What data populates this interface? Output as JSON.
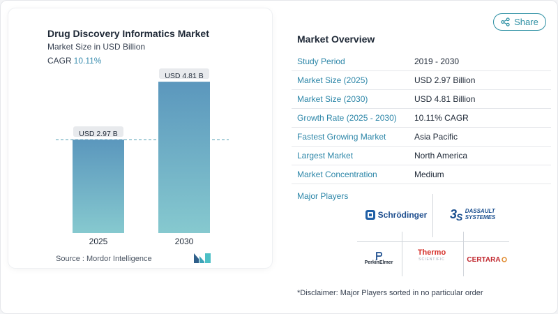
{
  "share": {
    "label": "Share",
    "icon": "share-icon"
  },
  "chart_data": {
    "type": "bar",
    "title": "Drug Discovery Informatics Market",
    "subtitle": "Market Size in USD Billion",
    "cagr_label": "CAGR",
    "cagr_value": "10.11%",
    "categories": [
      "2025",
      "2030"
    ],
    "values": [
      2.97,
      4.81
    ],
    "data_labels": [
      "USD 2.97 B",
      "USD 4.81 B"
    ],
    "ylim": [
      0,
      5.5
    ],
    "reference_line": 2.97,
    "grid": false,
    "bar_color_top": "#5b97bd",
    "bar_color_bottom": "#86c9cf"
  },
  "source": "Source :  Mordor Intelligence",
  "overview": {
    "title": "Market Overview",
    "rows": [
      {
        "label": "Study Period",
        "value": "2019 - 2030"
      },
      {
        "label": "Market Size (2025)",
        "value": "USD 2.97 Billion"
      },
      {
        "label": "Market Size (2030)",
        "value": "USD 4.81 Billion"
      },
      {
        "label": "Growth Rate (2025 - 2030)",
        "value": "10.11% CAGR"
      },
      {
        "label": "Fastest Growing Market",
        "value": "Asia Pacific"
      },
      {
        "label": "Largest Market",
        "value": "North America"
      },
      {
        "label": "Market Concentration",
        "value": "Medium"
      }
    ]
  },
  "players": {
    "label": "Major Players",
    "logos": {
      "schrodinger": "Schrödinger",
      "dassault_line1": "DASSAULT",
      "dassault_line2": "SYSTEMES",
      "perkinelmer": "PerkinElmer",
      "thermo_line1": "Thermo",
      "thermo_line2": "SCIENTIFIC",
      "certara": "CERTARA"
    }
  },
  "disclaimer": "*Disclaimer: Major Players sorted in no particular order",
  "colors": {
    "accent": "#2c86a8",
    "cagr": "#3d8fb0"
  }
}
